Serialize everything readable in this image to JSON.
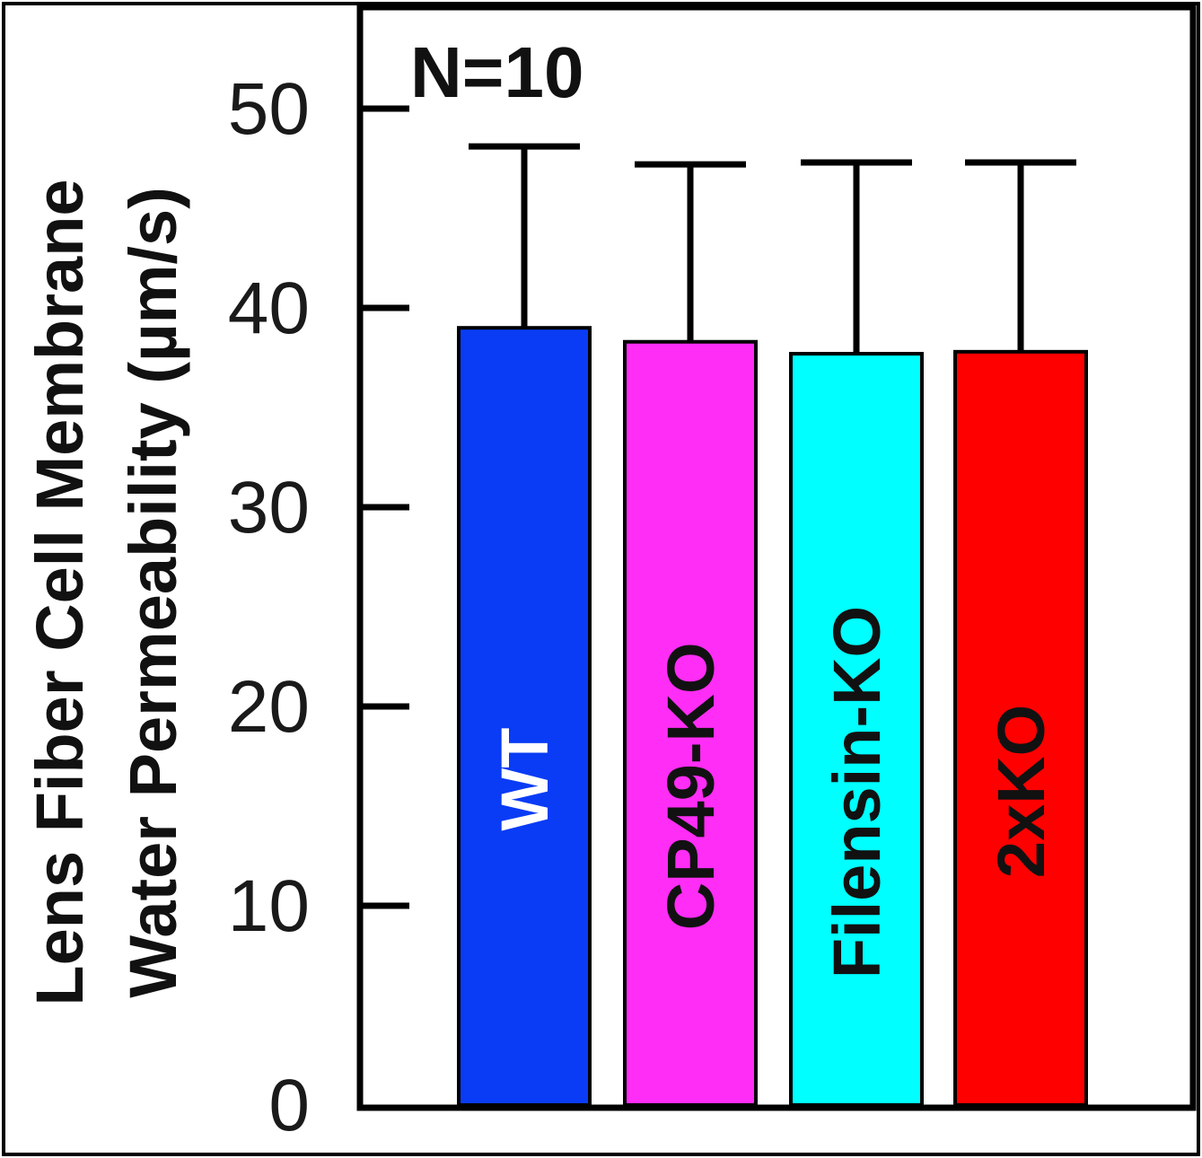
{
  "chart_data": {
    "type": "bar",
    "categories": [
      "WT",
      "CP49-KO",
      "Filensin-KO",
      "2xKO"
    ],
    "values": [
      39.0,
      38.3,
      37.7,
      37.8
    ],
    "error_upper": [
      48.1,
      47.2,
      47.3,
      47.3
    ],
    "bar_colors": [
      "#0a3cf5",
      "#ff2df5",
      "#00ffff",
      "#ff0000"
    ],
    "bar_label_colors": [
      "#ffffff",
      "#111111",
      "#111111",
      "#111111"
    ],
    "ylabel_line1": "Lens Fiber Cell Membrane",
    "ylabel_line2": "Water Permeability (µm/s)",
    "annotation": "N=10",
    "yticks": [
      0,
      10,
      20,
      30,
      40,
      50
    ],
    "ylim": [
      0,
      50
    ],
    "grid": false,
    "legend": "none"
  }
}
